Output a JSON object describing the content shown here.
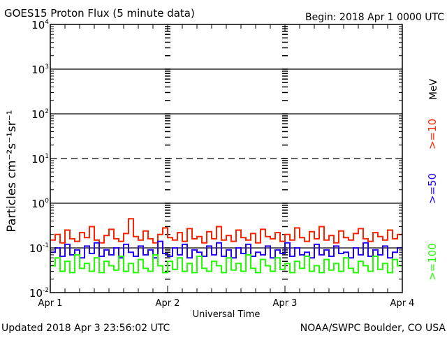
{
  "chart_data": {
    "type": "line",
    "title": "GOES15 Proton Flux (5 minute data)",
    "subtitle": "Begin: 2018 Apr 1 0000 UTC",
    "xlabel": "Universal Time",
    "ylabel": "Particles cm⁻²s⁻¹sr⁻¹",
    "y_scale": "log",
    "ylim": [
      0.01,
      10000
    ],
    "y_ticks": [
      {
        "base": "10",
        "exp": "-2"
      },
      {
        "base": "10",
        "exp": "-1"
      },
      {
        "base": "10",
        "exp": "0"
      },
      {
        "base": "10",
        "exp": "1"
      },
      {
        "base": "10",
        "exp": "2"
      },
      {
        "base": "10",
        "exp": "3"
      },
      {
        "base": "10",
        "exp": "4"
      }
    ],
    "x_range_hours": [
      0,
      72
    ],
    "x_ticks": [
      "Apr 1",
      "Apr 2",
      "Apr 3",
      "Apr 4"
    ],
    "grid": {
      "solid_decades": [
        -1,
        0,
        2,
        3
      ],
      "dashed_decades": [
        1
      ]
    },
    "unit_label": "MeV",
    "series": [
      {
        "name": ">=10",
        "color": "#ff2200",
        "values": [
          0.15,
          0.2,
          0.13,
          0.25,
          0.16,
          0.14,
          0.22,
          0.17,
          0.3,
          0.15,
          0.13,
          0.19,
          0.26,
          0.16,
          0.14,
          0.21,
          0.45,
          0.18,
          0.15,
          0.24,
          0.16,
          0.13,
          0.2,
          0.28,
          0.17,
          0.15,
          0.22,
          0.14,
          0.27,
          0.16,
          0.18,
          0.13,
          0.23,
          0.16,
          0.3,
          0.15,
          0.19,
          0.14,
          0.25,
          0.17,
          0.15,
          0.21,
          0.13,
          0.26,
          0.18,
          0.16,
          0.22,
          0.14,
          0.2,
          0.15,
          0.28,
          0.17,
          0.14,
          0.23,
          0.16,
          0.3,
          0.15,
          0.19,
          0.13,
          0.24,
          0.17,
          0.15,
          0.21,
          0.27,
          0.16,
          0.14,
          0.22,
          0.18,
          0.15,
          0.25,
          0.16,
          0.2
        ]
      },
      {
        "name": ">=50",
        "color": "#2200ff",
        "values": [
          0.08,
          0.1,
          0.065,
          0.12,
          0.07,
          0.09,
          0.06,
          0.11,
          0.075,
          0.13,
          0.065,
          0.09,
          0.07,
          0.1,
          0.06,
          0.12,
          0.08,
          0.065,
          0.11,
          0.07,
          0.09,
          0.06,
          0.14,
          0.075,
          0.065,
          0.1,
          0.07,
          0.12,
          0.06,
          0.09,
          0.08,
          0.065,
          0.11,
          0.07,
          0.13,
          0.065,
          0.09,
          0.06,
          0.1,
          0.075,
          0.12,
          0.065,
          0.08,
          0.07,
          0.11,
          0.06,
          0.09,
          0.075,
          0.13,
          0.065,
          0.1,
          0.07,
          0.08,
          0.06,
          0.12,
          0.07,
          0.09,
          0.065,
          0.11,
          0.075,
          0.08,
          0.06,
          0.1,
          0.07,
          0.13,
          0.065,
          0.09,
          0.07,
          0.11,
          0.06,
          0.08,
          0.1
        ]
      },
      {
        "name": ">=100",
        "color": "#22ff00",
        "values": [
          0.04,
          0.06,
          0.03,
          0.05,
          0.028,
          0.07,
          0.035,
          0.045,
          0.03,
          0.06,
          0.028,
          0.05,
          0.04,
          0.032,
          0.065,
          0.03,
          0.045,
          0.028,
          0.055,
          0.035,
          0.03,
          0.07,
          0.04,
          0.028,
          0.05,
          0.033,
          0.06,
          0.03,
          0.045,
          0.028,
          0.065,
          0.035,
          0.03,
          0.05,
          0.04,
          0.028,
          0.06,
          0.032,
          0.045,
          0.03,
          0.07,
          0.035,
          0.028,
          0.055,
          0.04,
          0.03,
          0.06,
          0.033,
          0.045,
          0.028,
          0.05,
          0.035,
          0.065,
          0.03,
          0.04,
          0.028,
          0.055,
          0.032,
          0.045,
          0.03,
          0.06,
          0.035,
          0.028,
          0.05,
          0.04,
          0.03,
          0.065,
          0.033,
          0.045,
          0.028,
          0.055,
          0.04
        ]
      }
    ]
  },
  "footer": {
    "updated": "Updated 2018 Apr  3 23:56:02 UTC",
    "credit": "NOAA/SWPC Boulder, CO USA"
  }
}
